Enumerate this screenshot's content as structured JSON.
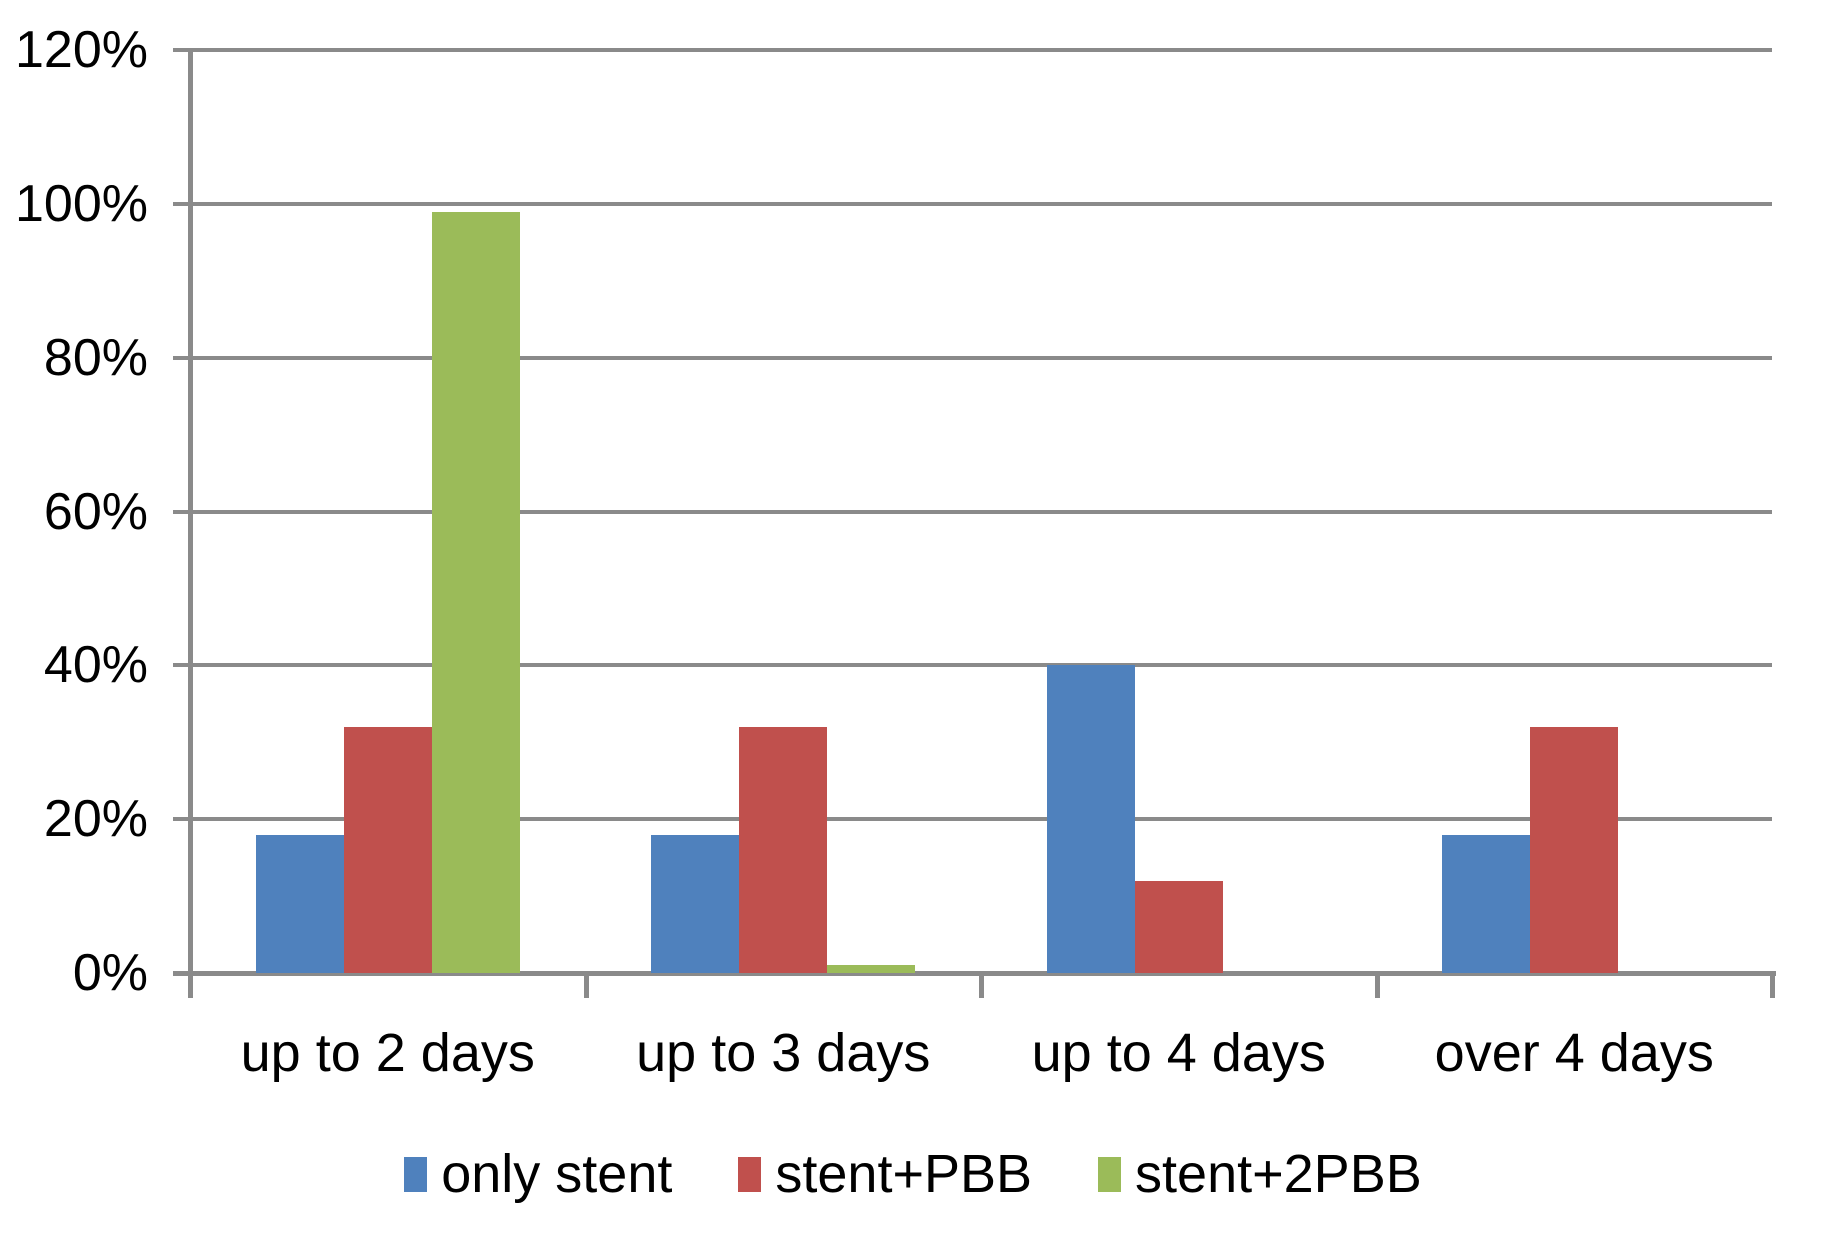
{
  "chart_data": {
    "type": "bar",
    "title": "",
    "xlabel": "",
    "ylabel": "",
    "categories": [
      "up to 2 days",
      "up to 3 days",
      "up to 4 days",
      "over 4 days"
    ],
    "series": [
      {
        "name": "only stent",
        "color": "#4F81BD",
        "values": [
          18,
          18,
          40,
          18
        ]
      },
      {
        "name": "stent+PBB",
        "color": "#C0504D",
        "values": [
          32,
          32,
          12,
          32
        ]
      },
      {
        "name": "stent+2PBB",
        "color": "#9BBB59",
        "values": [
          99,
          1,
          0,
          0
        ]
      }
    ],
    "ylim": [
      0,
      120
    ],
    "ytick_step": 20,
    "ytick_labels": [
      "0%",
      "20%",
      "40%",
      "60%",
      "80%",
      "100%",
      "120%"
    ],
    "grid": true,
    "gridline_color": "#8a8a8a",
    "text_color": "#000000",
    "background_color": "#ffffff",
    "legend_position": "bottom"
  }
}
